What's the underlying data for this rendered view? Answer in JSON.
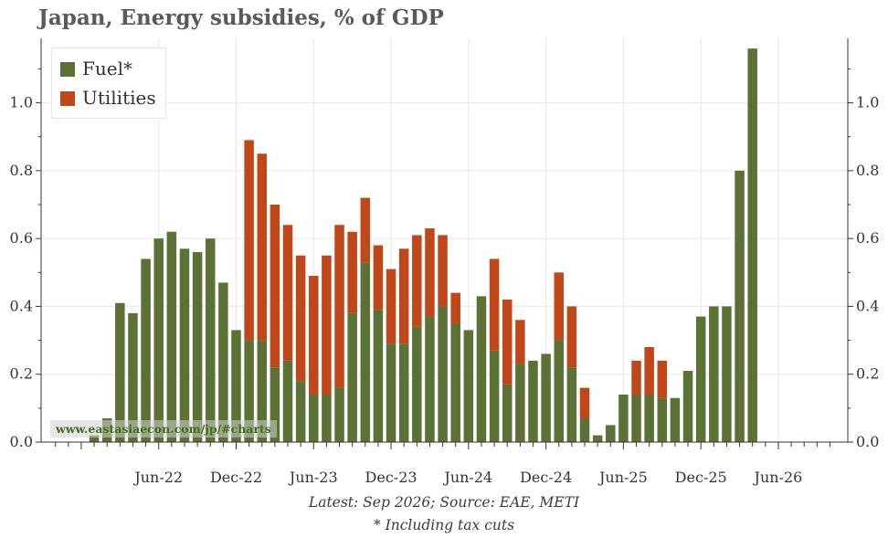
{
  "title": "Japan, Energy subsidies, % of GDP",
  "watermark": "www.eastasiaecon.com/jp/#charts",
  "footnotes": {
    "source": "Latest: Sep 2026; Source: EAE, METI",
    "note": "* Including tax cuts"
  },
  "colors": {
    "fuel": "#5b7136",
    "utilities": "#c0471a",
    "grid": "#e8e8e8",
    "axis": "#333333",
    "title": "#5a5a5a"
  },
  "chart_data": {
    "type": "bar",
    "stacked": true,
    "title": "Japan, Energy subsidies, % of GDP",
    "xlabel": "",
    "ylabel": "",
    "ylim": [
      0,
      1.19
    ],
    "yticks": [
      "0.0",
      "0.2",
      "0.4",
      "0.6",
      "0.8",
      "1.0"
    ],
    "legend": [
      "Fuel*",
      "Utilities"
    ],
    "legend_position": "top-left",
    "x_tick_labels": [
      "Jun-22",
      "Dec-22",
      "Jun-23",
      "Dec-23",
      "Jun-24",
      "Dec-24",
      "Jun-25",
      "Dec-25",
      "Jun-26"
    ],
    "categories": [
      "Jan-22",
      "Feb-22",
      "Mar-22",
      "Apr-22",
      "May-22",
      "Jun-22",
      "Jul-22",
      "Aug-22",
      "Sep-22",
      "Oct-22",
      "Nov-22",
      "Dec-22",
      "Jan-23",
      "Feb-23",
      "Mar-23",
      "Apr-23",
      "May-23",
      "Jun-23",
      "Jul-23",
      "Aug-23",
      "Sep-23",
      "Oct-23",
      "Nov-23",
      "Dec-23",
      "Jan-24",
      "Feb-24",
      "Mar-24",
      "Apr-24",
      "May-24",
      "Jun-24",
      "Jul-24",
      "Aug-24",
      "Sep-24",
      "Oct-24",
      "Nov-24",
      "Dec-24",
      "Jan-25",
      "Feb-25",
      "Mar-25",
      "Apr-25",
      "May-25",
      "Jun-25",
      "Jul-25",
      "Aug-25",
      "Sep-25",
      "Oct-25",
      "Nov-25",
      "Dec-25",
      "Jan-26",
      "Feb-26",
      "Mar-26",
      "Apr-26",
      "May-26",
      "Jun-26",
      "Jul-26",
      "Aug-26",
      "Sep-26"
    ],
    "series": [
      {
        "name": "Fuel*",
        "values": [
          0.02,
          0.07,
          0.41,
          0.38,
          0.54,
          0.6,
          0.62,
          0.57,
          0.56,
          0.6,
          0.47,
          0.33,
          0.3,
          0.3,
          0.22,
          0.24,
          0.18,
          0.14,
          0.14,
          0.16,
          0.38,
          0.53,
          0.39,
          0.29,
          0.29,
          0.34,
          0.37,
          0.4,
          0.35,
          0.33,
          0.43,
          0.27,
          0.17,
          0.23,
          0.24,
          0.26,
          0.3,
          0.22,
          0.07,
          0.02,
          0.05,
          0.14,
          0.14,
          0.14,
          0.13,
          0.13,
          0.21,
          0.37,
          0.4,
          0.4,
          0.8,
          1.16,
          0.0,
          0.0,
          0.0,
          0.0,
          0.0
        ]
      },
      {
        "name": "Utilities",
        "values": [
          0.0,
          0.0,
          0.0,
          0.0,
          0.0,
          0.0,
          0.0,
          0.0,
          0.0,
          0.0,
          0.0,
          0.0,
          0.59,
          0.55,
          0.48,
          0.4,
          0.37,
          0.35,
          0.41,
          0.48,
          0.24,
          0.19,
          0.19,
          0.22,
          0.28,
          0.27,
          0.26,
          0.21,
          0.09,
          0.0,
          0.0,
          0.27,
          0.25,
          0.13,
          0.0,
          0.0,
          0.2,
          0.18,
          0.09,
          0.0,
          0.0,
          0.0,
          0.1,
          0.14,
          0.11,
          0.0,
          0.0,
          0.0,
          0.0,
          0.0,
          0.0,
          0.0,
          0.0,
          0.0,
          0.0,
          0.0,
          0.0
        ]
      }
    ]
  }
}
